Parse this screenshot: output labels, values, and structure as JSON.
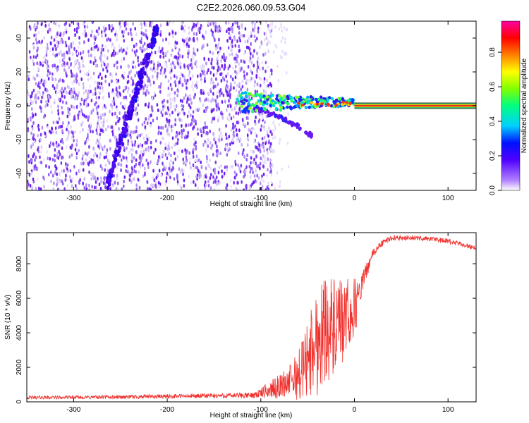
{
  "title": "C2E2.2026.060.09.53.G04",
  "colors": {
    "snr_line": "#f0302c",
    "spectrogram_noise": "#7020f0",
    "spectrogram_noise_light": "#d8c8f8",
    "carrier_line": "#e03020"
  },
  "chart_data": [
    {
      "type": "heatmap",
      "name": "spectrogram",
      "xlabel": "Height of straight line (km)",
      "ylabel": "Frequency (Hz)",
      "xlim": [
        -350,
        130
      ],
      "ylim": [
        -50,
        50
      ],
      "xticks": [
        -300,
        -200,
        -100,
        0,
        100
      ],
      "yticks": [
        -40,
        -20,
        0,
        20,
        40
      ],
      "colorbar": {
        "label": "Normalized spectral amplitude",
        "range": [
          0.0,
          0.98
        ],
        "ticks": [
          "0.0",
          "0.2",
          "0.4",
          "0.6",
          "0.8"
        ],
        "colormap": [
          "#e0e0ff",
          "#8000ff",
          "#0000ff",
          "#00ffff",
          "#00ff00",
          "#ffff00",
          "#ff0000",
          "#ff00ff"
        ]
      },
      "features": {
        "noise_region_x": [
          -350,
          -100
        ],
        "diagonal_track": {
          "x": [
            -265,
            -210
          ],
          "y": [
            -48,
            48
          ]
        },
        "signal_cluster_x": [
          -125,
          0
        ],
        "lower_branch": {
          "x": [
            -110,
            -45
          ],
          "y": [
            -2,
            -18
          ]
        },
        "carrier": {
          "x": [
            0,
            130
          ],
          "y": 0
        }
      }
    },
    {
      "type": "line",
      "name": "snr",
      "xlabel": "Height of straight line (km)",
      "ylabel": "SNR (10 * v/v)",
      "xlim": [
        -350,
        130
      ],
      "ylim": [
        0,
        9800
      ],
      "xticks": [
        -300,
        -200,
        -100,
        0,
        100
      ],
      "yticks": [
        0,
        2000,
        4000,
        6000,
        8000
      ],
      "series": [
        {
          "x": [
            -350,
            -300,
            -250,
            -200,
            -150,
            -110,
            -100,
            -90,
            -80,
            -70,
            -60,
            -50,
            -40,
            -30,
            -20,
            -10,
            0,
            5,
            10,
            20,
            30,
            40,
            60,
            80,
            100,
            120,
            130
          ],
          "y": [
            250,
            260,
            280,
            320,
            350,
            380,
            500,
            700,
            900,
            1200,
            1500,
            2500,
            3500,
            4500,
            4000,
            4700,
            5400,
            6200,
            7200,
            8600,
            9200,
            9500,
            9500,
            9450,
            9300,
            9050,
            8900
          ],
          "noise": [
            100,
            100,
            110,
            130,
            140,
            160,
            300,
            500,
            700,
            900,
            1500,
            2300,
            3200,
            3200,
            3000,
            2400,
            1800,
            1000,
            500,
            300,
            200,
            160,
            150,
            150,
            150,
            150,
            150
          ]
        }
      ]
    }
  ]
}
